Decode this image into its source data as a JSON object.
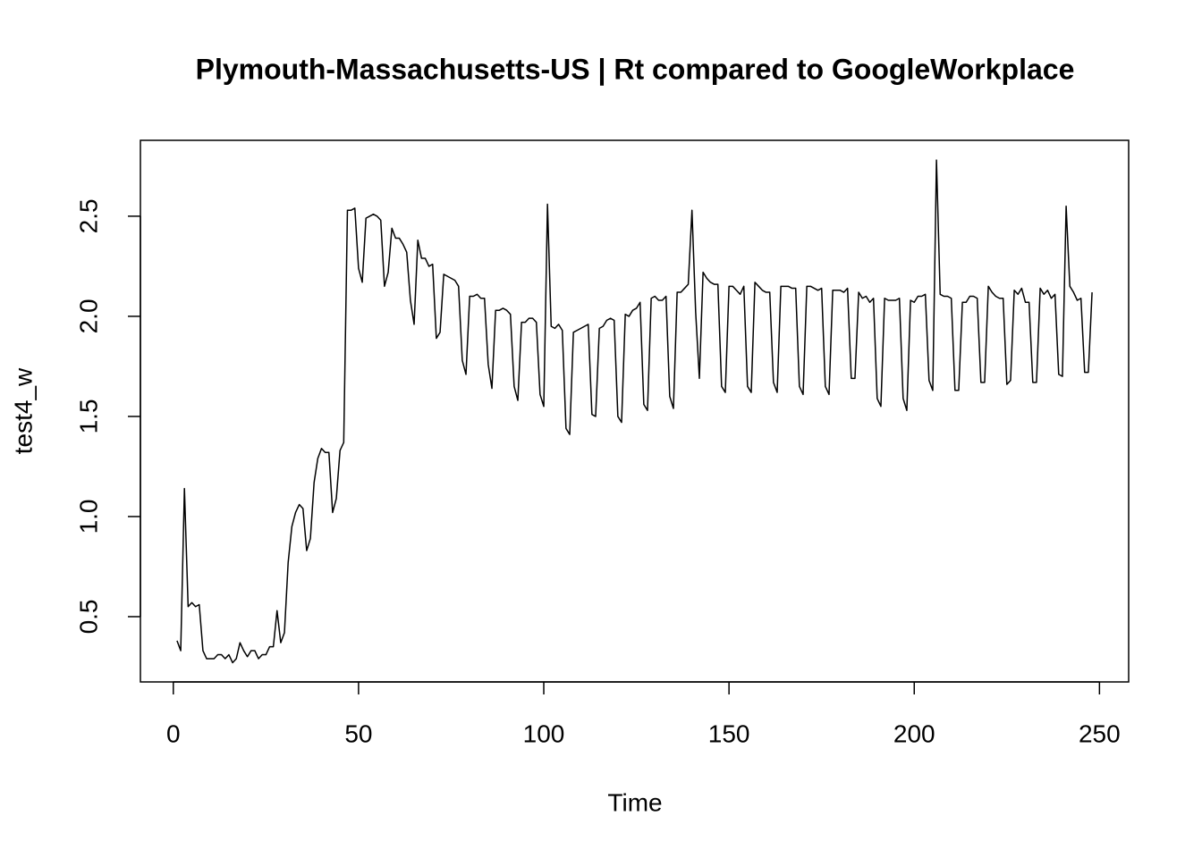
{
  "chart_data": {
    "type": "line",
    "title": "Plymouth-Massachusetts-US | Rt compared to GoogleWorkplace",
    "x_label": "Time",
    "y_label": "test4_w",
    "color": "#000000",
    "x": [
      1,
      2,
      3,
      4,
      5,
      6,
      7,
      8,
      9,
      10,
      11,
      12,
      13,
      14,
      15,
      16,
      17,
      18,
      19,
      20,
      21,
      22,
      23,
      24,
      25,
      26,
      27,
      28,
      29,
      30,
      31,
      32,
      33,
      34,
      35,
      36,
      37,
      38,
      39,
      40,
      41,
      42,
      43,
      44,
      45,
      46,
      47,
      48,
      49,
      50,
      51,
      52,
      53,
      54,
      55,
      56,
      57,
      58,
      59,
      60,
      61,
      62,
      63,
      64,
      65,
      66,
      67,
      68,
      69,
      70,
      71,
      72,
      73,
      74,
      75,
      76,
      77,
      78,
      79,
      80,
      81,
      82,
      83,
      84,
      85,
      86,
      87,
      88,
      89,
      90,
      91,
      92,
      93,
      94,
      95,
      96,
      97,
      98,
      99,
      100,
      101,
      102,
      103,
      104,
      105,
      106,
      107,
      108,
      109,
      110,
      111,
      112,
      113,
      114,
      115,
      116,
      117,
      118,
      119,
      120,
      121,
      122,
      123,
      124,
      125,
      126,
      127,
      128,
      129,
      130,
      131,
      132,
      133,
      134,
      135,
      136,
      137,
      138,
      139,
      140,
      141,
      142,
      143,
      144,
      145,
      146,
      147,
      148,
      149,
      150,
      151,
      152,
      153,
      154,
      155,
      156,
      157,
      158,
      159,
      160,
      161,
      162,
      163,
      164,
      165,
      166,
      167,
      168,
      169,
      170,
      171,
      172,
      173,
      174,
      175,
      176,
      177,
      178,
      179,
      180,
      181,
      182,
      183,
      184,
      185,
      186,
      187,
      188,
      189,
      190,
      191,
      192,
      193,
      194,
      195,
      196,
      197,
      198,
      199,
      200,
      201,
      202,
      203,
      204,
      205,
      206,
      207,
      208,
      209,
      210,
      211,
      212,
      213,
      214,
      215,
      216,
      217,
      218,
      219,
      220,
      221,
      222,
      223,
      224,
      225,
      226,
      227,
      228,
      229,
      230,
      231,
      232,
      233,
      234,
      235,
      236,
      237,
      238,
      239,
      240,
      241,
      242,
      243,
      244,
      245,
      246,
      247,
      248
    ],
    "values": [
      0.38,
      0.33,
      1.14,
      0.55,
      0.57,
      0.55,
      0.56,
      0.33,
      0.29,
      0.29,
      0.29,
      0.31,
      0.31,
      0.29,
      0.31,
      0.27,
      0.29,
      0.37,
      0.33,
      0.3,
      0.33,
      0.33,
      0.29,
      0.31,
      0.31,
      0.35,
      0.35,
      0.53,
      0.37,
      0.42,
      0.77,
      0.95,
      1.02,
      1.06,
      1.04,
      0.83,
      0.89,
      1.17,
      1.29,
      1.34,
      1.32,
      1.32,
      1.02,
      1.09,
      1.33,
      1.37,
      2.53,
      2.53,
      2.54,
      2.24,
      2.17,
      2.49,
      2.5,
      2.51,
      2.5,
      2.48,
      2.15,
      2.22,
      2.44,
      2.39,
      2.39,
      2.36,
      2.32,
      2.08,
      1.96,
      2.38,
      2.29,
      2.29,
      2.25,
      2.26,
      1.89,
      1.92,
      2.21,
      2.2,
      2.19,
      2.18,
      2.15,
      1.78,
      1.71,
      2.1,
      2.1,
      2.11,
      2.09,
      2.09,
      1.76,
      1.64,
      2.03,
      2.03,
      2.04,
      2.03,
      2.01,
      1.65,
      1.58,
      1.97,
      1.97,
      1.99,
      1.99,
      1.97,
      1.61,
      1.55,
      2.56,
      1.95,
      1.94,
      1.96,
      1.93,
      1.44,
      1.41,
      1.92,
      1.93,
      1.94,
      1.95,
      1.96,
      1.51,
      1.5,
      1.94,
      1.95,
      1.98,
      1.99,
      1.98,
      1.5,
      1.47,
      2.01,
      2.0,
      2.03,
      2.04,
      2.07,
      1.56,
      1.53,
      2.09,
      2.1,
      2.08,
      2.08,
      2.1,
      1.6,
      1.54,
      2.12,
      2.12,
      2.14,
      2.16,
      2.53,
      2.02,
      1.69,
      2.22,
      2.19,
      2.17,
      2.16,
      2.16,
      1.65,
      1.62,
      2.15,
      2.15,
      2.13,
      2.11,
      2.15,
      1.65,
      1.62,
      2.17,
      2.15,
      2.13,
      2.12,
      2.12,
      1.67,
      1.62,
      2.15,
      2.15,
      2.15,
      2.14,
      2.14,
      1.65,
      1.61,
      2.15,
      2.15,
      2.14,
      2.13,
      2.14,
      1.65,
      1.61,
      2.13,
      2.13,
      2.13,
      2.12,
      2.14,
      1.69,
      1.69,
      2.12,
      2.09,
      2.1,
      2.07,
      2.09,
      1.59,
      1.55,
      2.09,
      2.08,
      2.08,
      2.08,
      2.09,
      1.59,
      1.53,
      2.08,
      2.07,
      2.1,
      2.1,
      2.11,
      1.68,
      1.63,
      2.78,
      2.11,
      2.1,
      2.1,
      2.09,
      1.63,
      1.63,
      2.07,
      2.07,
      2.1,
      2.1,
      2.09,
      1.67,
      1.67,
      2.15,
      2.12,
      2.1,
      2.09,
      2.09,
      1.66,
      1.68,
      2.13,
      2.11,
      2.14,
      2.07,
      2.07,
      1.67,
      1.67,
      2.14,
      2.11,
      2.13,
      2.09,
      2.11,
      1.71,
      1.7,
      2.55,
      2.15,
      2.12,
      2.08,
      2.09,
      1.72,
      1.72,
      2.12
    ],
    "xlim": [
      -8.88,
      257.88
    ],
    "xticks": [
      0,
      50,
      100,
      150,
      200,
      250
    ],
    "ylim": [
      0.174,
      2.879
    ],
    "yticks": [
      0.5,
      {
        "value": 1,
        "label": "1.0"
      },
      1.5,
      {
        "value": 2,
        "label": "2.0"
      },
      2.5
    ]
  }
}
